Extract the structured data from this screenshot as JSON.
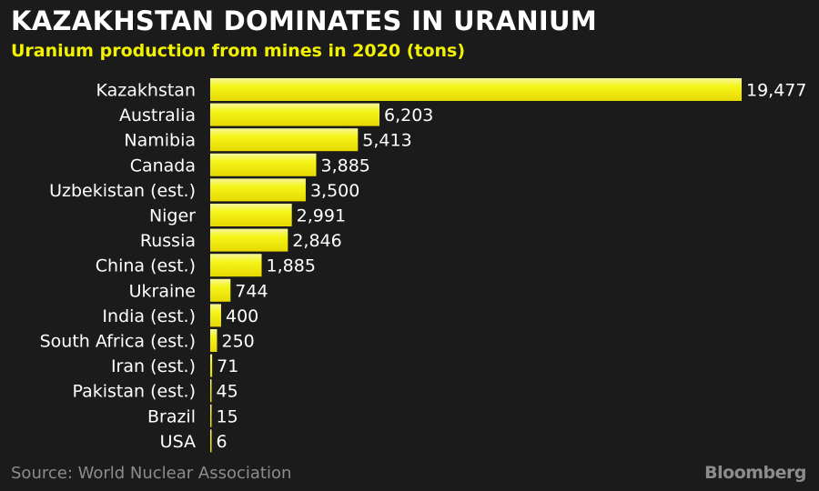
{
  "header": {
    "title": "KAZAKHSTAN DOMINATES IN URANIUM",
    "subtitle": "Uranium production from mines in 2020 (tons)"
  },
  "footer": {
    "source": "Source: World Nuclear Association",
    "brand": "Bloomberg"
  },
  "colors": {
    "background": "#1b1b1b",
    "bar_light": "#f6f69a",
    "bar_mid": "#f5f51a",
    "bar_dark": "#e6d900",
    "subtitle": "#f2f200"
  },
  "chart_data": {
    "type": "bar",
    "orientation": "horizontal",
    "title": "KAZAKHSTAN DOMINATES IN URANIUM",
    "subtitle": "Uranium production from mines in 2020 (tons)",
    "xlabel": "",
    "ylabel": "",
    "grid": false,
    "categories": [
      "Kazakhstan",
      "Australia",
      "Namibia",
      "Canada",
      "Uzbekistan (est.)",
      "Niger",
      "Russia",
      "China (est.)",
      "Ukraine",
      "India (est.)",
      "South Africa (est.)",
      "Iran (est.)",
      "Pakistan (est.)",
      "Brazil",
      "USA"
    ],
    "values": [
      19477,
      6203,
      5413,
      3885,
      3500,
      2991,
      2846,
      1885,
      744,
      400,
      250,
      71,
      45,
      15,
      6
    ],
    "value_labels": [
      "19,477",
      "6,203",
      "5,413",
      "3,885",
      "3,500",
      "2,991",
      "2,846",
      "1,885",
      "744",
      "400",
      "250",
      "71",
      "45",
      "15",
      "6"
    ]
  }
}
